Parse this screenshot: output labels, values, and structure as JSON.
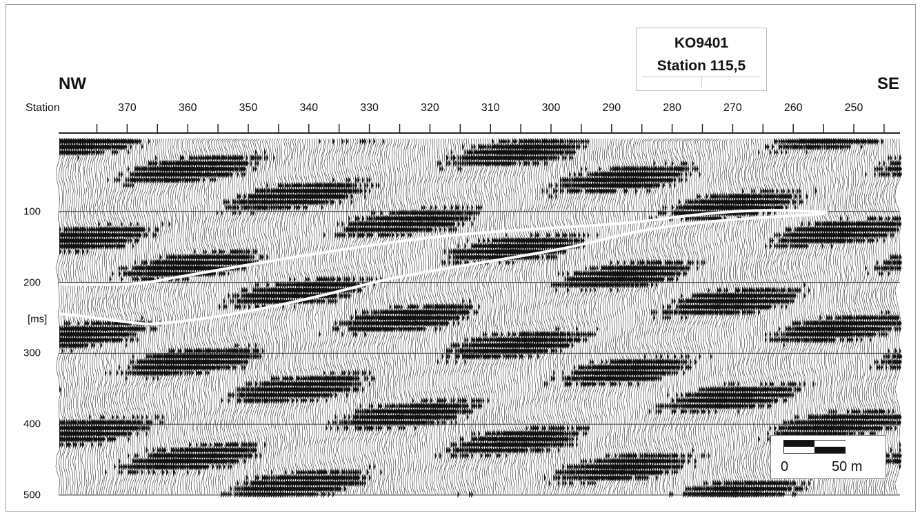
{
  "title": {
    "line1": "KO9401",
    "line2": "Station 115,5"
  },
  "directions": {
    "left": "NW",
    "right": "SE"
  },
  "station_axis": {
    "label": "Station",
    "ticks": [
      "370",
      "360",
      "350",
      "340",
      "330",
      "320",
      "310",
      "300",
      "290",
      "280",
      "270",
      "260",
      "250"
    ]
  },
  "time_axis": {
    "unit": "[ms]",
    "ticks": [
      "100",
      "200",
      "300",
      "400",
      "500"
    ]
  },
  "scale_bar": {
    "start": "0",
    "end": "50 m"
  }
}
